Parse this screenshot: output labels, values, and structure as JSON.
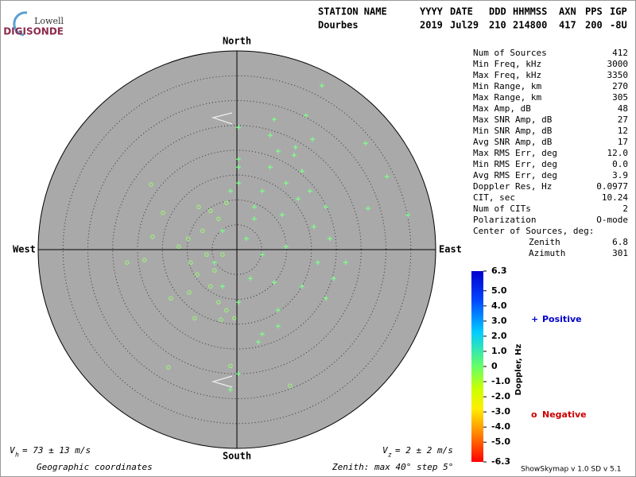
{
  "logo": {
    "top": "Lowell",
    "bottom": "DIGISONDE"
  },
  "header": {
    "columns": [
      [
        "STATION NAME",
        "Dourbes"
      ],
      [
        "YYYY",
        "2019"
      ],
      [
        "DATE",
        "Jul29"
      ],
      [
        "DDD",
        "210"
      ],
      [
        "HHMMSS",
        "214800"
      ],
      [
        "AXN",
        "417"
      ],
      [
        "PPS",
        "200"
      ],
      [
        "IGP",
        "-8U"
      ]
    ]
  },
  "stats": {
    "rows": [
      [
        "Num of Sources",
        "412"
      ],
      [
        "Min Freq, kHz",
        "3000"
      ],
      [
        "Max Freq, kHz",
        "3350"
      ],
      [
        "Min Range, km",
        "270"
      ],
      [
        "Max Range, km",
        "305"
      ],
      [
        "Max Amp, dB",
        "48"
      ],
      [
        "Max SNR Amp, dB",
        "27"
      ],
      [
        "Min SNR Amp, dB",
        "12"
      ],
      [
        "Avg SNR Amp, dB",
        "17"
      ],
      [
        "Max RMS Err, deg",
        "12.0"
      ],
      [
        "Min RMS Err, deg",
        "0.0"
      ],
      [
        "Avg RMS Err, deg",
        "3.9"
      ],
      [
        "Doppler Res, Hz",
        "0.0977"
      ],
      [
        "CIT, sec",
        "10.24"
      ],
      [
        "Num of CITs",
        "2"
      ],
      [
        "Polarization",
        "O-mode"
      ]
    ],
    "center_of_sources": {
      "title": "Center of Sources, deg:",
      "rows": [
        [
          "Zenith",
          "6.8"
        ],
        [
          "Azimuth",
          "301"
        ]
      ]
    }
  },
  "colorbar": {
    "label": "Doppler, Hz",
    "range": [
      -6.3,
      6.3
    ],
    "ticks": [
      6.3,
      {
        "value": 5,
        "label": "5.0"
      },
      {
        "value": 4,
        "label": "4.0"
      },
      {
        "value": 3,
        "label": "3.0"
      },
      {
        "value": 2,
        "label": "2.0"
      },
      {
        "value": 1,
        "label": "1.0"
      },
      0,
      {
        "value": -1,
        "label": "-1.0"
      },
      {
        "value": -2,
        "label": "-2.0"
      },
      {
        "value": -3,
        "label": "-3.0"
      },
      {
        "value": -4,
        "label": "-4.0"
      },
      {
        "value": -5,
        "label": "-5.0"
      },
      -6.3
    ]
  },
  "footer": {
    "vh": {
      "symbol": "V",
      "sub": "h",
      "text": "= 73 ± 13 m/s"
    },
    "vz": {
      "symbol": "V",
      "sub": "z",
      "text": "= 2 ± 2 m/s"
    },
    "coords": "Geographic coordinates",
    "zenith": "Zenith: max 40°  step 5°",
    "version": "ShowSkymap v 1.0   SD v 5.1"
  },
  "chart_data": {
    "type": "scatter",
    "compass": {
      "north": "North",
      "south": "South",
      "east": "East",
      "west": "West"
    },
    "xlim": [
      -40,
      40
    ],
    "ylim": [
      -40,
      40
    ],
    "rticks": [
      5,
      10,
      15,
      20,
      25,
      30,
      35
    ],
    "series": [
      {
        "name": "Positive",
        "marker": "+",
        "color": "#7dff8a",
        "legend_color": "#0000cc",
        "x": [
          17.1,
          25.9,
          34.4,
          26.4,
          30.2,
          15.2,
          11.8,
          8.3,
          13.1,
          9.9,
          6.7,
          5.1,
          14.7,
          17.9,
          9.1,
          3.5,
          1.9,
          5.1,
          9.9,
          16.3,
          19.5,
          13.1,
          8.3,
          5.1,
          4.3,
          0.3,
          -1.3,
          -2.9,
          0.3,
          0.3,
          0.3,
          -1.3,
          6.7,
          7.5,
          13.9,
          11.5,
          12.3,
          15.5,
          17.9,
          7.5,
          2.7,
          0.3,
          8.3,
          21.9,
          18.7,
          -2.9,
          3.5,
          -4.5,
          0.3
        ],
        "values": [
          33.0,
          21.4,
          7.0,
          8.3,
          14.7,
          22.2,
          20.6,
          19.8,
          15.8,
          13.4,
          16.6,
          11.8,
          11.8,
          8.6,
          7.0,
          6.2,
          2.2,
          -1.0,
          0.6,
          -2.6,
          -5.8,
          -7.4,
          -12.2,
          -17.0,
          -18.6,
          -25.0,
          -28.2,
          3.8,
          16.6,
          18.2,
          13.4,
          11.8,
          23.0,
          26.2,
          27.0,
          19.0,
          10.2,
          4.6,
          -9.8,
          -6.6,
          -5.8,
          -10.6,
          -15.4,
          -2.6,
          2.2,
          -7.4,
          8.6,
          -2.6,
          24.6
        ]
      },
      {
        "name": "Negative",
        "marker": "o",
        "color": "#9cf27a",
        "legend_color": "#cc0000",
        "x": [
          -17.3,
          -14.9,
          -17.0,
          -22.1,
          -18.6,
          -9.8,
          -9.3,
          -9.6,
          -13.3,
          -8.5,
          -5.3,
          -3.7,
          -2.1,
          -0.5,
          -4.5,
          -2.9,
          -6.1,
          -6.9,
          -5.3,
          -7.7,
          -3.7,
          -2.1,
          -1.3,
          -13.8,
          -3.2,
          -8.0,
          -11.7,
          10.7
        ],
        "values": [
          13.1,
          7.4,
          2.6,
          -2.6,
          -2.1,
          2.2,
          -2.6,
          -8.6,
          -9.8,
          -13.8,
          -7.4,
          -10.6,
          -12.2,
          -13.8,
          -4.2,
          -1.0,
          -1.0,
          3.8,
          7.8,
          8.6,
          6.2,
          9.4,
          -23.4,
          -23.7,
          -14.1,
          -5.0,
          0.6,
          -27.4
        ]
      }
    ]
  }
}
